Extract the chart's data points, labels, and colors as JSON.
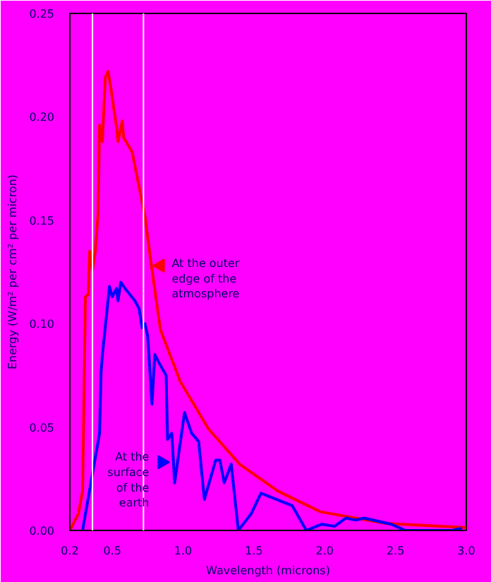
{
  "chart_data": {
    "type": "line",
    "xlabel": "Wavelength (microns)",
    "ylabel": "Energy (W/m² per cm² per micron)",
    "xlim": [
      0.2,
      3.0
    ],
    "ylim": [
      0,
      0.25
    ],
    "xticks": [
      0.2,
      0.5,
      {
        "value": 1.0,
        "label": "1.0"
      },
      1.5,
      {
        "value": 2.0,
        "label": "2.0"
      },
      2.5,
      {
        "value": 3.0,
        "label": "3.0"
      }
    ],
    "yticks": [
      {
        "value": 0,
        "label": "0.00"
      },
      0.05,
      {
        "value": 0.1,
        "label": "0.10"
      },
      0.15,
      {
        "value": 0.2,
        "label": "0.20"
      },
      0.25
    ],
    "grid": false,
    "line_style": "solid",
    "series": [
      {
        "color": "#ff0000",
        "x": [
          0.2,
          0.26,
          0.29,
          0.3,
          0.31,
          0.33,
          0.34,
          0.36,
          0.38,
          0.4,
          0.41,
          0.43,
          0.45,
          0.47,
          0.49,
          0.51,
          0.53,
          0.54,
          0.57,
          0.58,
          0.64,
          0.73,
          0.78,
          0.84,
          0.98,
          1.18,
          1.4,
          1.67,
          1.97,
          2.43,
          3.0
        ],
        "values": [
          0,
          0.008,
          0.019,
          0.064,
          0.113,
          0.114,
          0.135,
          0.126,
          0.135,
          0.154,
          0.196,
          0.188,
          0.219,
          0.222,
          0.214,
          0.204,
          0.195,
          0.188,
          0.198,
          0.19,
          0.183,
          0.152,
          0.126,
          0.097,
          0.072,
          0.049,
          0.032,
          0.019,
          0.009,
          0.0034,
          0.0014
        ]
      },
      {
        "color": "#0000ff",
        "x": [
          0.29,
          0.41,
          0.42,
          0.43,
          0.48,
          0.5,
          0.53,
          0.54,
          0.56,
          0.59,
          0.66,
          0.69,
          0.71,
          0.73,
          0.75,
          0.78,
          0.8,
          0.83,
          0.88,
          0.89,
          0.92,
          0.94,
          1.01,
          1.06,
          1.11,
          1.15,
          1.23,
          1.26,
          1.29,
          1.34,
          1.39,
          1.48,
          1.55,
          1.77,
          1.87,
          1.98,
          2.07,
          2.15,
          2.22,
          2.28,
          2.47,
          2.57,
          2.9,
          2.97
        ],
        "values": [
          0,
          0.047,
          0.076,
          0.085,
          0.118,
          0.113,
          0.117,
          0.111,
          0.12,
          0.117,
          0.111,
          0.107,
          0.098,
          0.1,
          0.094,
          0.061,
          0.085,
          0.081,
          0.075,
          0.044,
          0.047,
          0.023,
          0.057,
          0.047,
          0.043,
          0.015,
          0.034,
          0.034,
          0.023,
          0.032,
          0,
          0.008,
          0.018,
          0.012,
          0,
          0.003,
          0.002,
          0.006,
          0.005,
          0.006,
          0.003,
          0,
          0,
          0.001
        ]
      }
    ],
    "ref_lines": [
      {
        "axis": "x",
        "value": 0.36,
        "color": "#ffffff"
      },
      {
        "axis": "x",
        "value": 0.72,
        "color": "#ffffff"
      }
    ],
    "annotations": [
      {
        "text": "At the outer\nedge of the\natmosphere",
        "x": 0.84,
        "y": 0.128
      },
      {
        "text": "At the\nsurface\nof the\nearth",
        "x": 0.85,
        "y": 0.033
      }
    ]
  }
}
